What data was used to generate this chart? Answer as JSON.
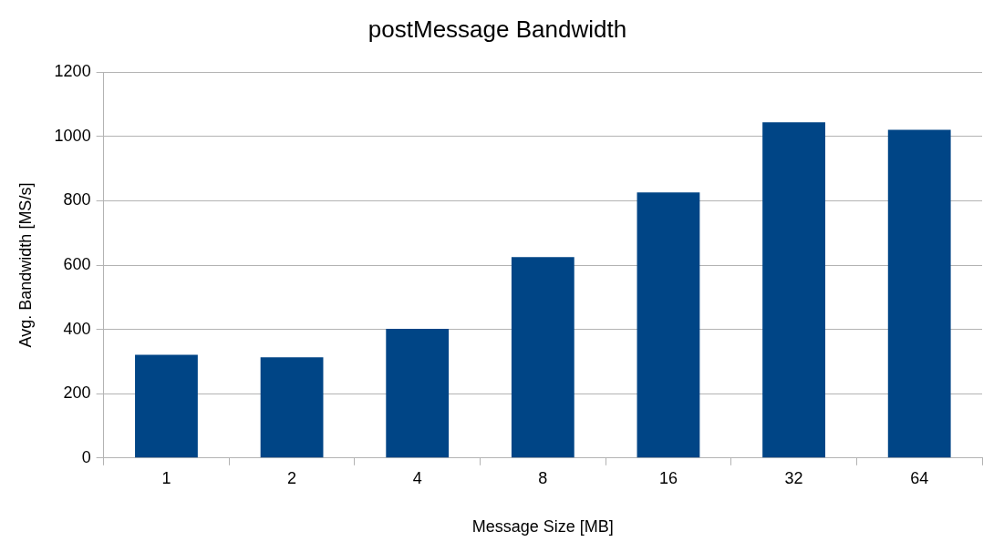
{
  "chart_data": {
    "type": "bar",
    "title": "postMessage Bandwidth",
    "xlabel": "Message Size [MB]",
    "ylabel": "Avg. Bandwidth [MS/s]",
    "categories": [
      "1",
      "2",
      "4",
      "8",
      "16",
      "32",
      "64"
    ],
    "values": [
      321,
      313,
      402,
      625,
      826,
      1044,
      1021
    ],
    "color": "#004586",
    "ylim": [
      0,
      1200
    ],
    "yticks": [
      0,
      200,
      400,
      600,
      800,
      1000,
      1200
    ],
    "grid": "y",
    "legend": false
  }
}
